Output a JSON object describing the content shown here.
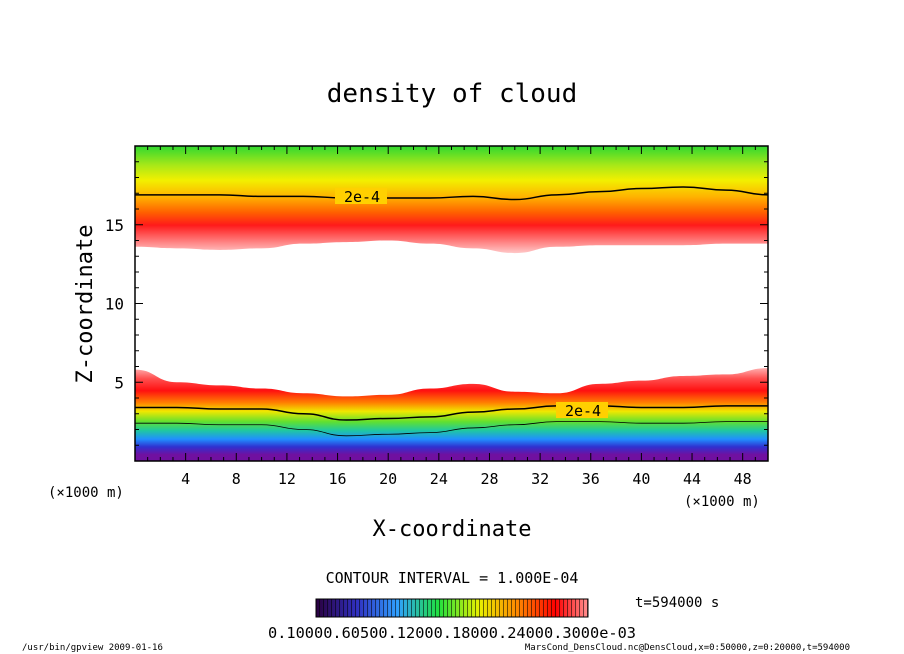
{
  "chart_data": {
    "type": "heatmap",
    "title": "density of cloud",
    "xlabel": "X-coordinate",
    "ylabel": "Z-coordinate",
    "x_unit_label": "(×1000 m)",
    "z_unit_label": "(×1000 m)",
    "xlim": [
      0,
      50
    ],
    "ylim": [
      0,
      20
    ],
    "x_ticks": [
      "4",
      "8",
      "12",
      "16",
      "20",
      "24",
      "28",
      "32",
      "36",
      "40",
      "44",
      "48"
    ],
    "y_ticks": [
      "5",
      "10",
      "15"
    ],
    "contour_interval_text": "CONTOUR INTERVAL = 1.000E-04",
    "contour_labels": [
      "2e-4",
      "2e-4"
    ],
    "time_label": "t=594000 s",
    "colorbar_labels_text": "0.10000.60500.12000.18000.24000.3000e-03",
    "colorbar_colors": [
      "#2a003f",
      "#3030c0",
      "#30a0ff",
      "#20e040",
      "#e8f000",
      "#ff8000",
      "#ff0000",
      "#ff9090"
    ],
    "upper_band": {
      "bottom_z": [
        13.6,
        13.5,
        13.4,
        13.5,
        13.8,
        13.9,
        14.0,
        13.8,
        13.5,
        13.2,
        13.6,
        13.7,
        13.7,
        13.7,
        13.8,
        13.8
      ],
      "contour_2e-4_z": [
        16.9,
        16.9,
        16.9,
        16.8,
        16.8,
        16.7,
        16.7,
        16.7,
        16.8,
        16.6,
        16.9,
        17.1,
        17.3,
        17.4,
        17.2,
        16.9
      ],
      "x": [
        0,
        3.3,
        6.7,
        10,
        13.3,
        16.7,
        20,
        23.3,
        26.7,
        30,
        33.3,
        36.7,
        40,
        43.3,
        46.7,
        50
      ]
    },
    "lower_band": {
      "top_z": [
        5.8,
        5.0,
        4.8,
        4.6,
        4.3,
        4.1,
        4.2,
        4.6,
        4.9,
        4.4,
        4.3,
        4.9,
        5.1,
        5.4,
        5.5,
        5.9
      ],
      "contour_2e-4_z": [
        3.4,
        3.4,
        3.3,
        3.3,
        3.0,
        2.6,
        2.7,
        2.8,
        3.1,
        3.3,
        3.5,
        3.5,
        3.4,
        3.4,
        3.5,
        3.5
      ],
      "x": [
        0,
        3.3,
        6.7,
        10,
        13.3,
        16.7,
        20,
        23.3,
        26.7,
        30,
        33.3,
        36.7,
        40,
        43.3,
        46.7,
        50
      ]
    }
  },
  "footer": {
    "left": "/usr/bin/gpview   2009-01-16",
    "right": "MarsCond_DensCloud.nc@DensCloud,x=0:50000,z=0:20000,t=594000"
  }
}
